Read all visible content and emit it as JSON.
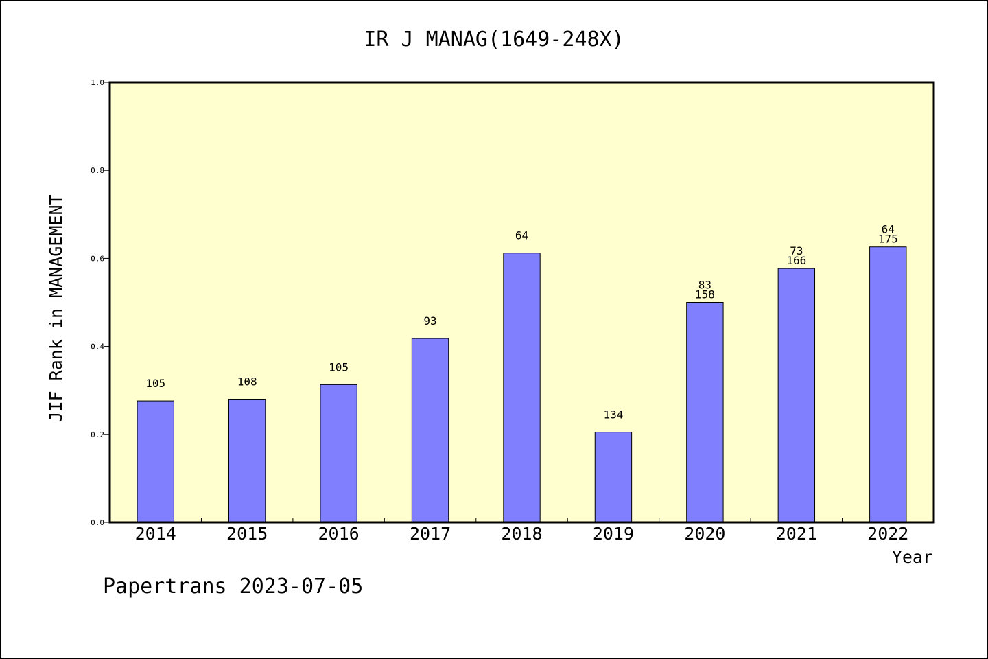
{
  "chart_data": {
    "type": "bar",
    "title": "IR J MANAG(1649-248X)",
    "xlabel": "Year",
    "ylabel": "JIF Rank in MANAGEMENT",
    "ylim": [
      0,
      1.0
    ],
    "yticks": [
      "0.0",
      "0.2",
      "0.4",
      "0.6",
      "0.8",
      "1.0"
    ],
    "categories": [
      "2014",
      "2015",
      "2016",
      "2017",
      "2018",
      "2019",
      "2020",
      "2021",
      "2022"
    ],
    "values": [
      0.276,
      0.28,
      0.313,
      0.418,
      0.612,
      0.205,
      0.5,
      0.577,
      0.626
    ],
    "labels_top": [
      "",
      "",
      "",
      "",
      "",
      "",
      "83",
      "73",
      "64"
    ],
    "labels_bottom": [
      "105",
      "108",
      "105",
      "93",
      "64",
      "134",
      "158",
      "166",
      "175"
    ],
    "bar_color": "#8080ff",
    "plot_background": "#ffffd0",
    "grid": false,
    "legend": "none"
  },
  "footer": {
    "text": "Papertrans 2023-07-05"
  }
}
